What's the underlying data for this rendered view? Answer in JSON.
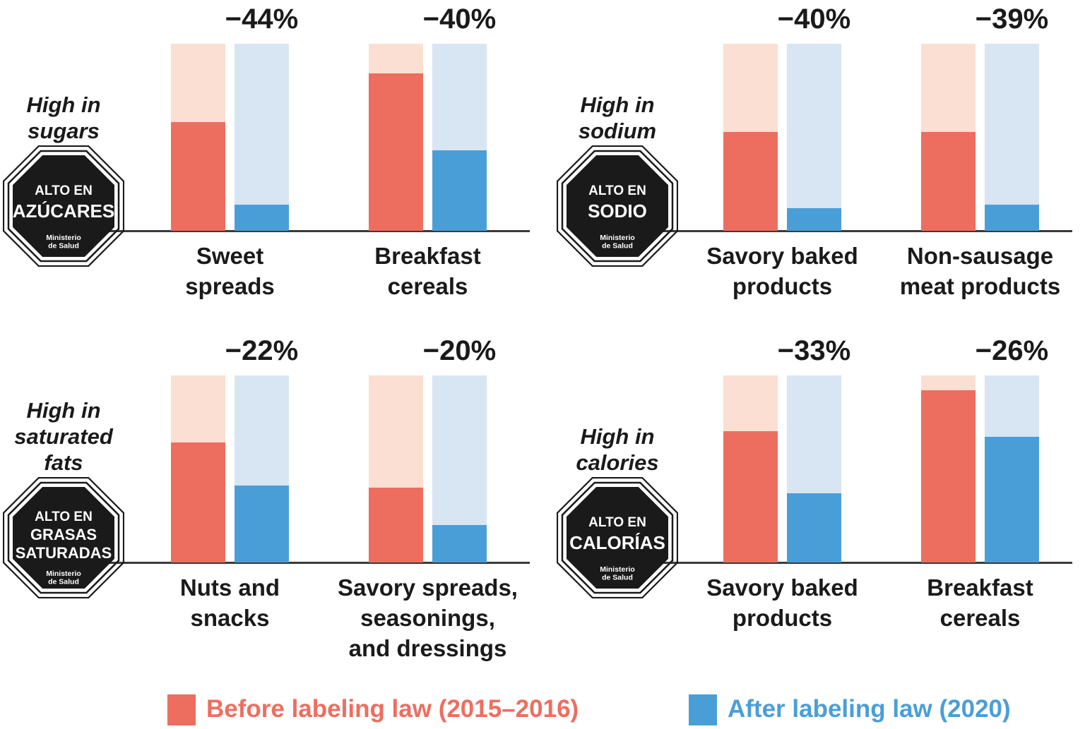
{
  "colors": {
    "before": "#ED6E5F",
    "before_light": "#FBDFD2",
    "before_value_text": "#FBE3DA",
    "after": "#4A9ED8",
    "after_light": "#D8E5F3",
    "after_value_text": "#DDEAF7",
    "ink": "#1A1A1A",
    "axis": "#3A3A3A",
    "seal_fill": "#1A1A1A",
    "seal_text": "#FFFFFF"
  },
  "legend": {
    "before_label": "Before labeling law (2015–2016)",
    "after_label": "After labeling law (2020)"
  },
  "chart_data": {
    "type": "bar",
    "unit": "percent of products",
    "ylim": [
      0,
      100
    ],
    "grid": false,
    "series": [
      "Before labeling law (2015–2016)",
      "After labeling law (2020)"
    ],
    "panels": [
      {
        "header_lines": [
          "High in",
          "sugars"
        ],
        "seal": {
          "line1": "ALTO EN",
          "main_lines": [
            "AZÚCARES"
          ],
          "ministry_lines": [
            "Ministerio",
            "de Salud"
          ]
        },
        "groups": [
          {
            "category_lines": [
              "Sweet",
              "spreads"
            ],
            "before": 58,
            "after": 14,
            "before_label": "58%",
            "after_label": "14%",
            "change_label": "−44%"
          },
          {
            "category_lines": [
              "Breakfast",
              "cereals"
            ],
            "before": 84,
            "after": 43,
            "before_label": "84%",
            "after_label": "43%",
            "change_label": "−40%"
          }
        ]
      },
      {
        "header_lines": [
          "High in",
          "sodium"
        ],
        "seal": {
          "line1": "ALTO EN",
          "main_lines": [
            "SODIO"
          ],
          "ministry_lines": [
            "Ministerio",
            "de Salud"
          ]
        },
        "groups": [
          {
            "category_lines": [
              "Savory baked",
              "products"
            ],
            "before": 53,
            "after": 12,
            "before_label": "53%",
            "after_label": "12%",
            "change_label": "−40%"
          },
          {
            "category_lines": [
              "Non-sausage",
              "meat products"
            ],
            "before": 53,
            "after": 14,
            "before_label": "53%",
            "after_label": "14%",
            "change_label": "−39%"
          }
        ]
      },
      {
        "header_lines": [
          "High in",
          "saturated",
          "fats"
        ],
        "seal": {
          "line1": "ALTO EN",
          "main_lines": [
            "GRASAS",
            "SATURADAS"
          ],
          "ministry_lines": [
            "Ministerio",
            "de Salud"
          ]
        },
        "groups": [
          {
            "category_lines": [
              "Nuts and",
              "snacks"
            ],
            "before": 64,
            "after": 41,
            "before_label": "64%",
            "after_label": "41%",
            "change_label": "−22%"
          },
          {
            "category_lines": [
              "Savory spreads,",
              "seasonings,",
              "and dressings"
            ],
            "before": 40,
            "after": 20,
            "before_label": "40%",
            "after_label": "20%",
            "change_label": "−20%"
          }
        ]
      },
      {
        "header_lines": [
          "High in",
          "calories"
        ],
        "seal": {
          "line1": "ALTO EN",
          "main_lines": [
            "CALORÍAS"
          ],
          "ministry_lines": [
            "Ministerio",
            "de Salud"
          ]
        },
        "groups": [
          {
            "category_lines": [
              "Savory baked",
              "products"
            ],
            "before": 70,
            "after": 37,
            "before_label": "70%",
            "after_label": "37%",
            "change_label": "−33%"
          },
          {
            "category_lines": [
              "Breakfast",
              "cereals"
            ],
            "before": 92,
            "after": 67,
            "before_label": "92%",
            "after_label": "67%",
            "change_label": "−26%"
          }
        ]
      }
    ]
  }
}
